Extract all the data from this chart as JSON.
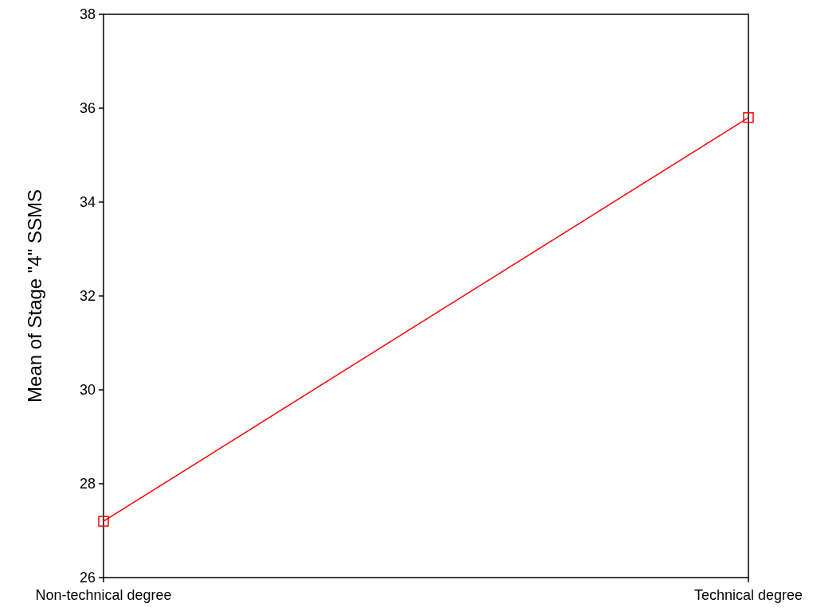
{
  "chart_data": {
    "type": "line",
    "ylabel": "Mean of Stage \"4\" SSMS",
    "categories": [
      "Non-technical degree",
      "Technical degree"
    ],
    "series": [
      {
        "color": "#ff0000",
        "values": [
          27.2,
          35.8
        ]
      }
    ],
    "ylim": [
      26,
      38
    ],
    "yticks": [
      26,
      28,
      30,
      32,
      34,
      36,
      38
    ],
    "marker": "square",
    "line_style": "solid",
    "grid": false
  }
}
